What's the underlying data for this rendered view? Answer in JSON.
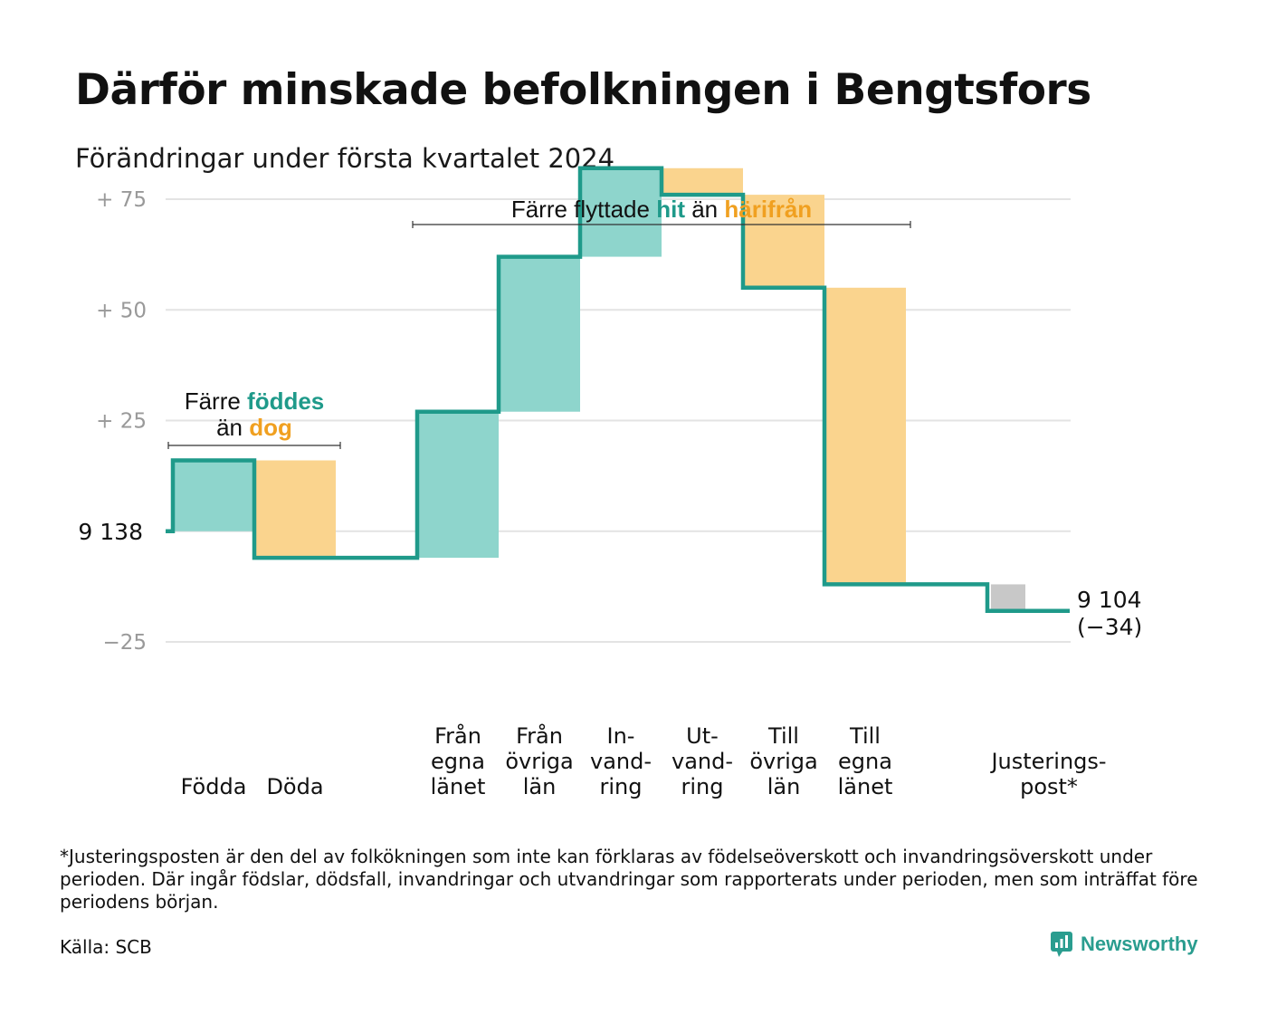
{
  "title": "Därför minskade befolkningen i Bengtsfors",
  "subtitle": "Förändringar under första kvartalet 2024",
  "chart_data": {
    "type": "waterfall",
    "start_value": 9138,
    "start_label": "9  138",
    "end_value": 9104,
    "end_label": "9 104",
    "end_change_label": "(−34)",
    "ylim": [
      -40,
      75
    ],
    "yticks": [
      {
        "value": 75,
        "label": "+  75"
      },
      {
        "value": 50,
        "label": "+  50"
      },
      {
        "value": 25,
        "label": "+  25"
      },
      {
        "value": 0,
        "label": ""
      },
      {
        "value": -25,
        "label": "−25"
      }
    ],
    "steps": [
      {
        "label_lines": [
          "Födda"
        ],
        "value": 16,
        "kind": "in"
      },
      {
        "label_lines": [
          "Döda"
        ],
        "value": -22,
        "kind": "out"
      },
      {
        "label_lines": [
          "",
          ""
        ],
        "value": 0,
        "kind": "none"
      },
      {
        "label_lines": [
          "Från",
          "egna",
          "länet"
        ],
        "value": 33,
        "kind": "in"
      },
      {
        "label_lines": [
          "Från",
          "övriga",
          "län"
        ],
        "value": 35,
        "kind": "in"
      },
      {
        "label_lines": [
          "In-",
          "vand-",
          "ring"
        ],
        "value": 20,
        "kind": "in"
      },
      {
        "label_lines": [
          "Ut-",
          "vand-",
          "ring"
        ],
        "value": -6,
        "kind": "out"
      },
      {
        "label_lines": [
          "Till",
          "övriga",
          "län"
        ],
        "value": -21,
        "kind": "out"
      },
      {
        "label_lines": [
          "Till",
          "egna",
          "länet"
        ],
        "value": -67,
        "kind": "out"
      },
      {
        "label_lines": [
          ""
        ],
        "value": 0,
        "kind": "none"
      },
      {
        "label_lines": [
          "Justerings-",
          "post*"
        ],
        "value": -6,
        "kind": "adjust"
      }
    ],
    "annotations": [
      {
        "lines": [
          [
            {
              "text": "Färre ",
              "style": "plain"
            },
            {
              "text": "föddes",
              "style": "teal"
            }
          ],
          [
            {
              "text": "än ",
              "style": "plain"
            },
            {
              "text": "dog",
              "style": "orange"
            }
          ]
        ],
        "from_step": 0,
        "to_step": 1
      },
      {
        "lines": [
          [
            {
              "text": "Färre flyttade ",
              "style": "plain"
            },
            {
              "text": "hit",
              "style": "teal"
            },
            {
              "text": "  än ",
              "style": "plain"
            },
            {
              "text": "härifrån",
              "style": "orange"
            }
          ]
        ],
        "from_step": 3,
        "to_step": 8
      }
    ],
    "colors": {
      "in": "#8ed5cc",
      "out": "#fad48e",
      "adjust": "#c8c8c8",
      "line": "#1f9a8a",
      "grid": "#e3e3e3",
      "tick": "#999999"
    }
  },
  "footnote": "*Justeringsposten är den del av folkökningen som inte kan förklaras av födelseöverskott och invandringsöverskott under perioden. Där ingår födslar, dödsfall, invandringar och utvandringar som rapporterats under perioden, men som inträffat före periodens början.",
  "source": "Källa: SCB",
  "brand": {
    "name": "Newsworthy",
    "icon": "newsworthy-logo-icon"
  }
}
